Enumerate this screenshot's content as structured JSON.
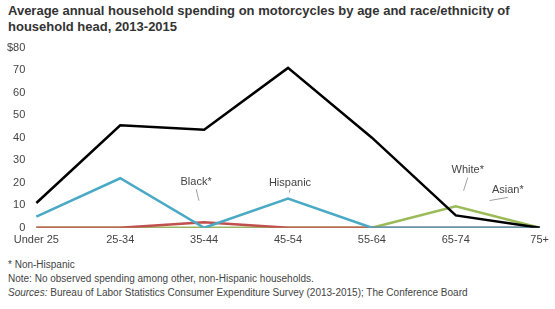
{
  "chart_data": {
    "type": "line",
    "title": "Average annual household spending on motorcycles by age and race/ethnicity of household head, 2013-2015",
    "categories": [
      "Under 25",
      "25-34",
      "35-44",
      "45-54",
      "55-64",
      "65-74",
      "75+"
    ],
    "series": [
      {
        "name": "White*",
        "color": "#000000",
        "values": [
          11,
          45.5,
          43.5,
          71,
          40,
          5.5,
          0
        ]
      },
      {
        "name": "Hispanic",
        "color": "#4aaac6",
        "values": [
          5,
          22,
          0,
          13,
          0,
          0,
          0
        ]
      },
      {
        "name": "Black*",
        "color": "#c0504d",
        "values": [
          0,
          0,
          2.5,
          0,
          0,
          0,
          0
        ]
      },
      {
        "name": "Asian*",
        "color": "#9bbb59",
        "values": [
          0,
          0,
          0,
          0,
          0,
          9.5,
          0
        ]
      }
    ],
    "ylim": [
      0,
      80
    ],
    "yticks": [
      0,
      10,
      20,
      30,
      40,
      50,
      60,
      70,
      {
        "value": 80,
        "label": "$80"
      }
    ],
    "grid": false,
    "notes": [
      "* Non-Hispanic",
      "Note: No observed spending among other, non-Hispanic households.",
      "Sources: Bureau of Labor Statistics Consumer Expenditure Survey (2013-2015); The Conference Board"
    ]
  }
}
